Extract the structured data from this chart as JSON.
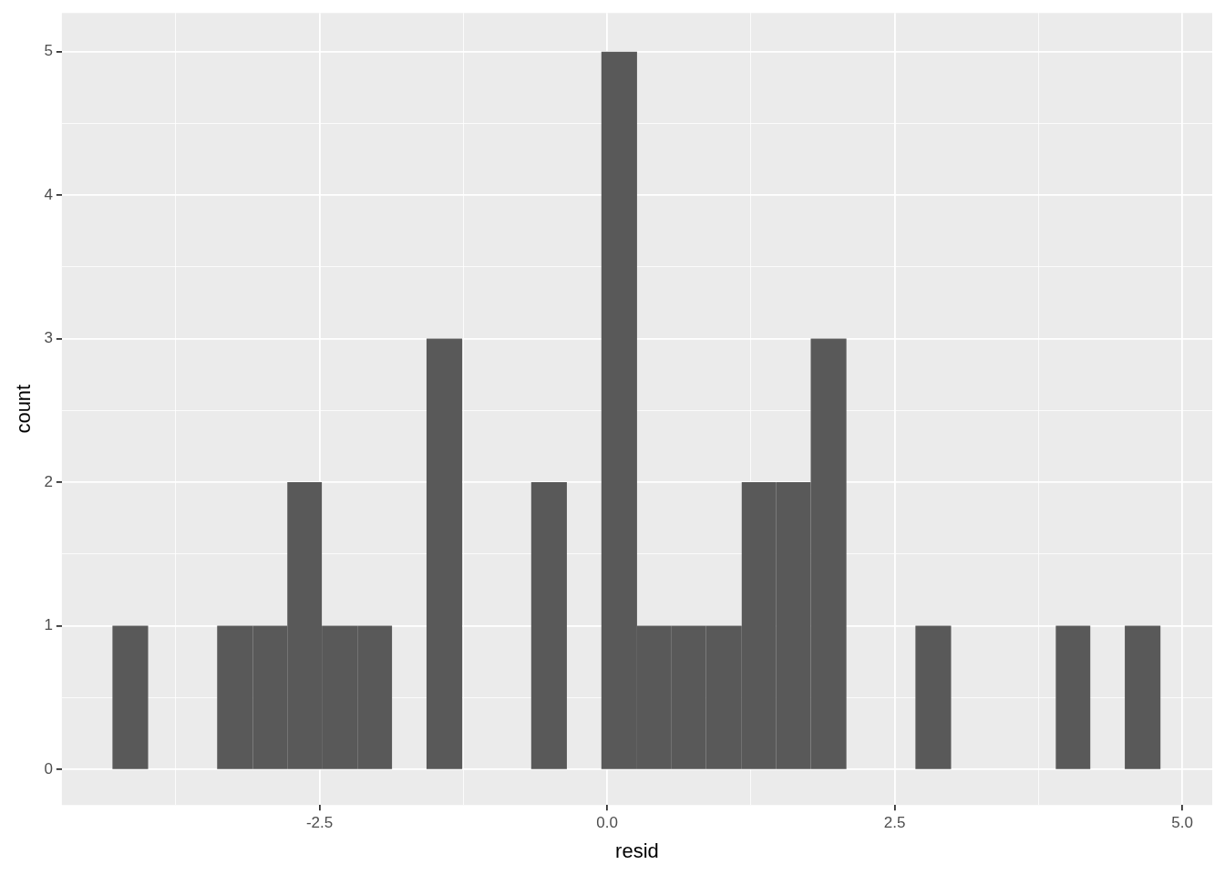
{
  "chart_data": {
    "type": "histogram",
    "xlabel": "resid",
    "ylabel": "count",
    "bins": [
      -4.3,
      -3.99,
      -3.39,
      -3.08,
      -2.78,
      -2.48,
      -2.17,
      -1.87,
      -1.57,
      -1.26,
      -0.66,
      -0.35,
      -0.05,
      0.26,
      0.56,
      0.86,
      1.17,
      1.47,
      1.77,
      2.08,
      2.68,
      2.99,
      3.9,
      4.2,
      4.5,
      4.81
    ],
    "values": [
      1,
      0,
      1,
      1,
      2,
      1,
      1,
      0,
      3,
      0,
      2,
      0,
      5,
      1,
      1,
      1,
      2,
      2,
      3,
      0,
      1,
      0,
      1,
      0,
      1
    ],
    "color": "#595959",
    "xlim": [
      -4.74,
      5.26
    ],
    "xticks": [
      {
        "value": -3.75,
        "label": null
      },
      {
        "value": -2.5,
        "label": "-2.5"
      },
      {
        "value": -1.25,
        "label": null
      },
      {
        "value": 0,
        "label": "0.0"
      },
      {
        "value": 1.25,
        "label": null
      },
      {
        "value": 2.5,
        "label": "2.5"
      },
      {
        "value": 3.75,
        "label": null
      },
      {
        "value": 5,
        "label": "5.0"
      }
    ],
    "ylim": [
      -0.25,
      5.27
    ],
    "yticks": [
      0,
      {
        "value": 0.5,
        "label": null
      },
      1,
      {
        "value": 1.5,
        "label": null
      },
      2,
      {
        "value": 2.5,
        "label": null
      },
      3,
      {
        "value": 3.5,
        "label": null
      },
      4,
      {
        "value": 4.5,
        "label": null
      },
      5
    ],
    "grid": true,
    "legend": false
  }
}
